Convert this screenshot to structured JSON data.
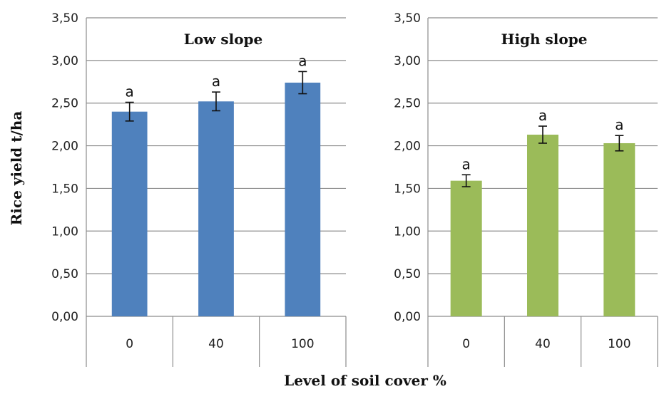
{
  "chart_data": [
    {
      "type": "bar",
      "title": "Low slope",
      "categories": [
        "0",
        "40",
        "100"
      ],
      "values": [
        2.4,
        2.52,
        2.74
      ],
      "error": [
        0.11,
        0.11,
        0.13
      ],
      "significance": [
        "a",
        "a",
        "a"
      ],
      "ylim": [
        0,
        3.5
      ],
      "yticks": [
        "0,00",
        "0,50",
        "1,00",
        "1,50",
        "2,00",
        "2,50",
        "3,00",
        "3,50"
      ],
      "color": "#4f81bd",
      "grid": true
    },
    {
      "type": "bar",
      "title": "High slope",
      "categories": [
        "0",
        "40",
        "100"
      ],
      "values": [
        1.59,
        2.13,
        2.03
      ],
      "error": [
        0.07,
        0.1,
        0.09
      ],
      "significance": [
        "a",
        "a",
        "a"
      ],
      "ylim": [
        0,
        3.5
      ],
      "yticks": [
        "0,00",
        "0,50",
        "1,00",
        "1,50",
        "2,00",
        "2,50",
        "3,00",
        "3,50"
      ],
      "color": "#9bbb59",
      "grid": true
    }
  ],
  "ylabel": "Rice yield t/ha",
  "xlabel": "Level of soil cover %"
}
